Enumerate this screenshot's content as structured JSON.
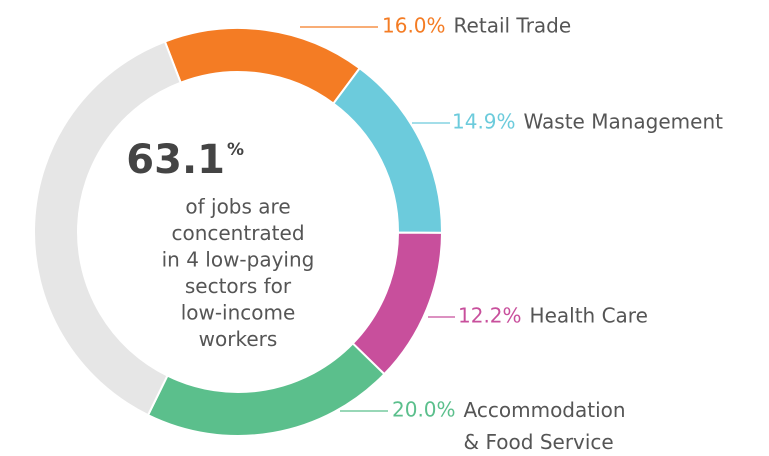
{
  "chart_data": {
    "type": "donut",
    "categories": [
      "Retail Trade",
      "Waste Management",
      "Health Care",
      "Accommodation\n& Food Service",
      null
    ],
    "values": [
      16.0,
      14.9,
      12.2,
      20.0,
      36.9
    ],
    "value_labels": [
      "16.0%",
      "14.9%",
      "12.2%",
      "20.0%",
      null
    ],
    "colors": [
      "#f47c24",
      "#6ccbdc",
      "#c84f9c",
      "#5bbf8c",
      "#e6e6e6"
    ],
    "center": {
      "value": "63.1",
      "unit": "%",
      "text": [
        "of jobs are",
        "concentrated",
        "in 4 low-paying",
        "sectors for",
        "low-income",
        "workers"
      ]
    }
  }
}
